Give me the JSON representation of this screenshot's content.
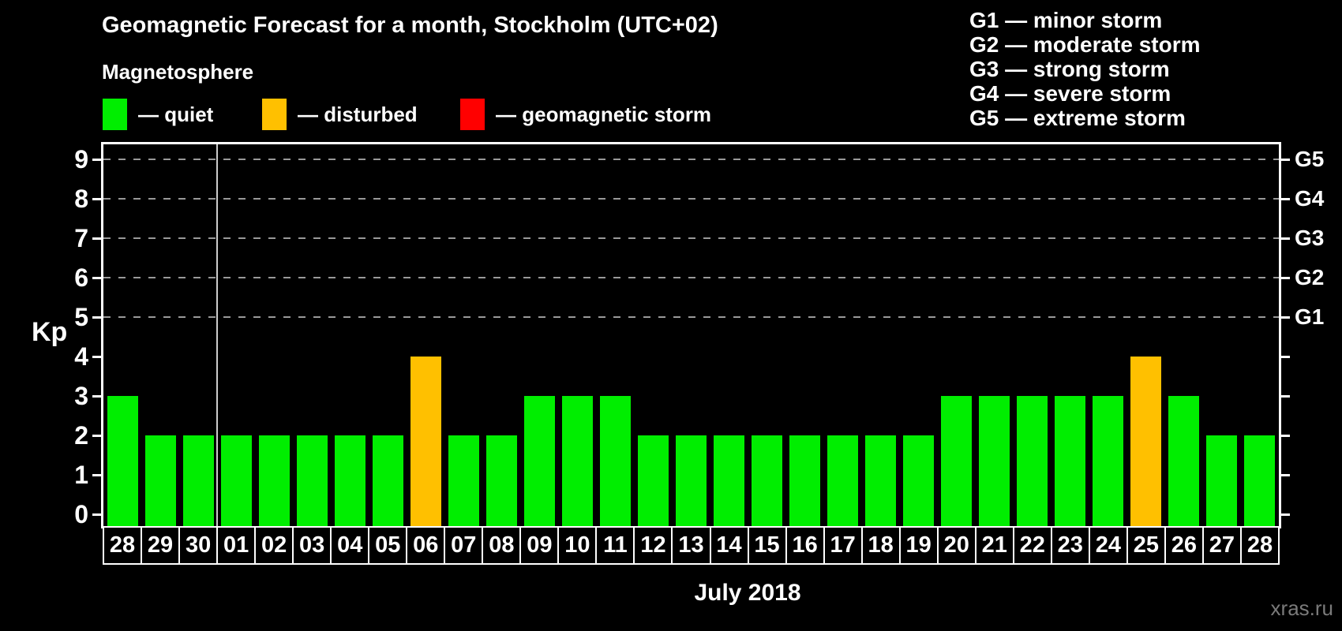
{
  "title": "Geomagnetic Forecast for a month, Stockholm (UTC+02)",
  "subtitle": "Magnetosphere",
  "legend": {
    "items": [
      {
        "key": "quiet",
        "label": "— quiet",
        "color": "#00ee00"
      },
      {
        "key": "disturbed",
        "label": "— disturbed",
        "color": "#ffc000"
      },
      {
        "key": "storm",
        "label": "— geomagnetic storm",
        "color": "#ff0000"
      }
    ]
  },
  "storm_scale": [
    "G1 — minor storm",
    "G2 — moderate storm",
    "G3 — strong storm",
    "G4 — severe storm",
    "G5 — extreme storm"
  ],
  "watermark": "xras.ru",
  "colors": {
    "quiet": "#00ee00",
    "disturbed": "#ffc000",
    "storm": "#ff0000",
    "grid": "#999999",
    "axis": "#ffffff",
    "month_line": "#cccccc",
    "background": "#000000",
    "watermark_text": "#7a7a7a"
  },
  "chart_data": {
    "type": "bar",
    "title": "Geomagnetic Forecast for a month, Stockholm (UTC+02)",
    "ylabel": "Kp",
    "xlabel": "July 2018",
    "ylim": [
      0,
      9
    ],
    "yticks": [
      0,
      1,
      2,
      3,
      4,
      5,
      6,
      7,
      8,
      9
    ],
    "grid": "horizontal dashed lines at Kp 5 through 9",
    "gridline_kp_levels": [
      5,
      6,
      7,
      8,
      9
    ],
    "right_axis": [
      {
        "label": "G1",
        "kp": 5
      },
      {
        "label": "G2",
        "kp": 6
      },
      {
        "label": "G3",
        "kp": 7
      },
      {
        "label": "G4",
        "kp": 8
      },
      {
        "label": "G5",
        "kp": 9
      }
    ],
    "categories": [
      "28",
      "29",
      "30",
      "01",
      "02",
      "03",
      "04",
      "05",
      "06",
      "07",
      "08",
      "09",
      "10",
      "11",
      "12",
      "13",
      "14",
      "15",
      "16",
      "17",
      "18",
      "19",
      "20",
      "21",
      "22",
      "23",
      "24",
      "25",
      "26",
      "27",
      "28"
    ],
    "values": [
      3,
      2,
      2,
      2,
      2,
      2,
      2,
      2,
      4,
      2,
      2,
      3,
      3,
      3,
      2,
      2,
      2,
      2,
      2,
      2,
      2,
      2,
      3,
      3,
      3,
      3,
      3,
      4,
      3,
      2,
      2
    ],
    "states": [
      "quiet",
      "quiet",
      "quiet",
      "quiet",
      "quiet",
      "quiet",
      "quiet",
      "quiet",
      "disturbed",
      "quiet",
      "quiet",
      "quiet",
      "quiet",
      "quiet",
      "quiet",
      "quiet",
      "quiet",
      "quiet",
      "quiet",
      "quiet",
      "quiet",
      "quiet",
      "quiet",
      "quiet",
      "quiet",
      "quiet",
      "quiet",
      "disturbed",
      "quiet",
      "quiet",
      "quiet"
    ],
    "month_start_index": 3,
    "legend_position": "top-left",
    "bar_color_legend": "quiet=green, disturbed=orange, storm=red"
  }
}
